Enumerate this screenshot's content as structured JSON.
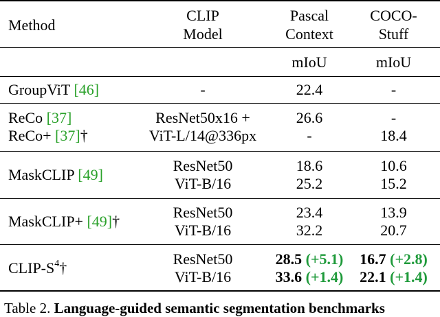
{
  "header": {
    "method": "Method",
    "clip_line1": "CLIP",
    "clip_line2": "Model",
    "pascal_line1": "Pascal",
    "pascal_line2": "Context",
    "coco_line1": "COCO-",
    "coco_line2": "Stuff",
    "metric_pascal": "mIoU",
    "metric_coco": "mIoU"
  },
  "rows": [
    {
      "method": "GroupViT ",
      "ref": "[46]",
      "suffix": "",
      "model": "-",
      "pascal": "22.4",
      "coco": "-"
    },
    {
      "method": "ReCo ",
      "ref": "[37]",
      "suffix": "",
      "model": "ResNet50x16 +",
      "pascal": "26.6",
      "coco": "-"
    },
    {
      "method": "ReCo+ ",
      "ref": "[37]",
      "suffix": "†",
      "model": "ViT-L/14@336px",
      "pascal": "-",
      "coco": "18.4"
    },
    {
      "method": "MaskCLIP ",
      "ref": "[49]",
      "suffix": "",
      "model_a": "ResNet50",
      "model_b": "ViT-B/16",
      "pascal_a": "18.6",
      "pascal_b": "25.2",
      "coco_a": "10.6",
      "coco_b": "15.2"
    },
    {
      "method": "MaskCLIP+ ",
      "ref": "[49]",
      "suffix": "†",
      "model_a": "ResNet50",
      "model_b": "ViT-B/16",
      "pascal_a": "23.4",
      "pascal_b": "32.2",
      "coco_a": "13.9",
      "coco_b": "20.7"
    },
    {
      "method": "CLIP-S",
      "sup": "4",
      "suffix": "†",
      "model_a": "ResNet50",
      "model_b": "ViT-B/16",
      "pascal_a": "28.5",
      "pascal_a_gain": "(+5.1)",
      "pascal_b": "33.6",
      "pascal_b_gain": "(+1.4)",
      "coco_a": "16.7",
      "coco_a_gain": "(+2.8)",
      "coco_b": "22.1",
      "coco_b_gain": "(+1.4)"
    }
  ],
  "caption": {
    "prefix": "Table 2. ",
    "bold": "Language-guided semantic segmentation benchmarks"
  }
}
